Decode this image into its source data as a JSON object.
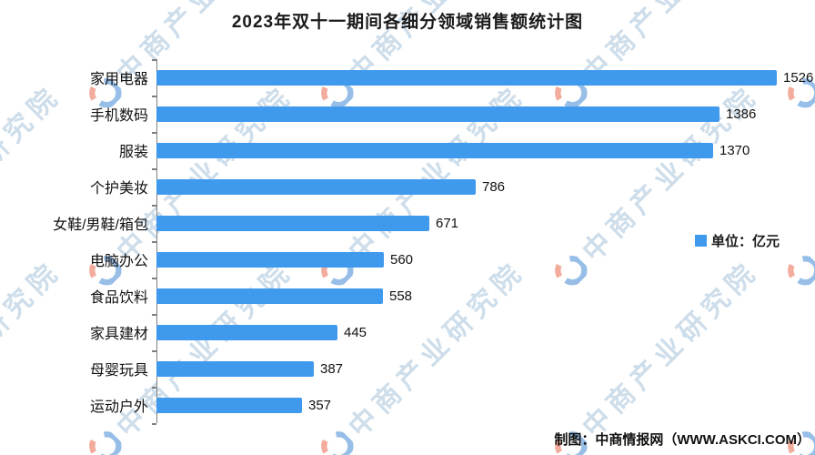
{
  "title": "2023年双十一期间各细分领域销售额统计图",
  "chart_data": {
    "type": "bar",
    "orientation": "horizontal",
    "title": "2023年双十一期间各细分领域销售额统计图",
    "categories": [
      "家用电器",
      "手机数码",
      "服装",
      "个护美妆",
      "女鞋/男鞋/箱包",
      "电脑办公",
      "食品饮料",
      "家具建材",
      "母婴玩具",
      "运动户外"
    ],
    "values": [
      1526,
      1386,
      1370,
      786,
      671,
      560,
      558,
      445,
      387,
      357
    ],
    "unit": "亿元",
    "xlim": [
      0,
      1600
    ],
    "grid": false,
    "value_labels_shown": true,
    "bar_color": "#3F9AEE",
    "legend_position": "right"
  },
  "legend": {
    "label": "单位：亿元",
    "swatch_color": "#3F9AEE"
  },
  "credit": "制图：中商情报网（WWW.ASKCI.COM）",
  "watermark": {
    "text": "中商产业研究院",
    "logo": "askci-circle-logo",
    "text_color": "#9fbdd6",
    "logo_blue": "#2f7fd1",
    "logo_orange": "#e8593c"
  }
}
